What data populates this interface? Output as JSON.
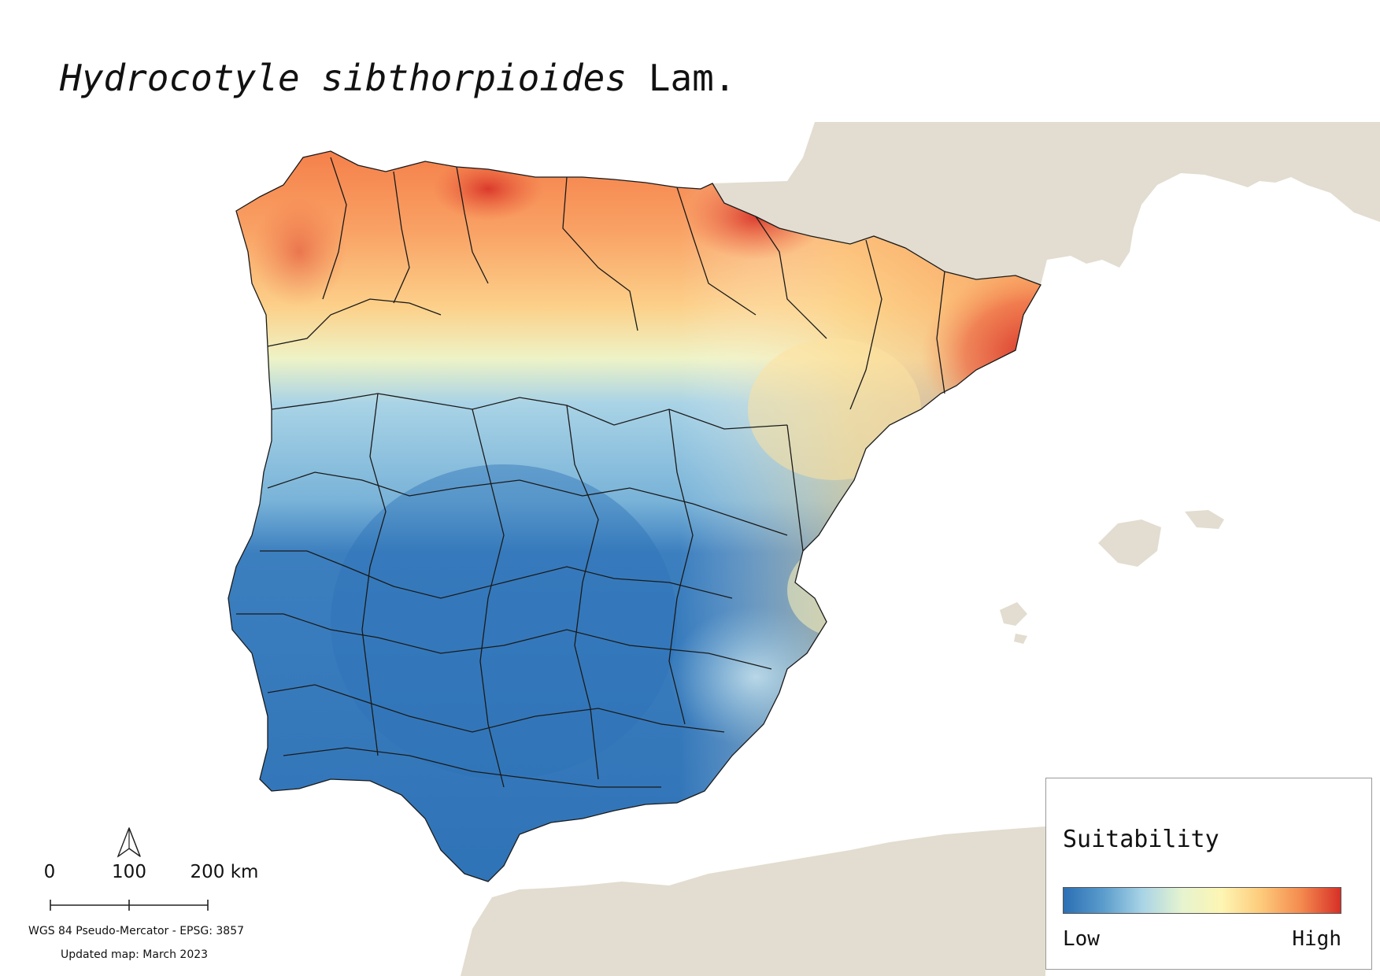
{
  "title": {
    "species": "Hydrocotyle sibthorpioides",
    "author": "Lam."
  },
  "legend": {
    "title": "Suitability",
    "low_label": "Low",
    "high_label": "High",
    "ramp_colors": [
      "#2c6fb4",
      "#5a9ccc",
      "#a9d4e6",
      "#e6f4cf",
      "#fdf5b3",
      "#fdca7a",
      "#f48a4f",
      "#d73027"
    ]
  },
  "scalebar": {
    "labels": [
      "0",
      "100",
      "200 km"
    ]
  },
  "crs_text": "WGS 84 Pseudo-Mercator  - EPSG: 3857",
  "updated_text": "Updated map: March 2023",
  "colors": {
    "land_background": "#e2ddd0",
    "sea": "#ffffff",
    "boundary": "#1a1a1a",
    "high_suitability": "#d73027",
    "low_suitability": "#2c6fb4"
  },
  "icons": {
    "north_arrow": "north-arrow-icon"
  },
  "suitability_gradient_north_to_south": {
    "north_coast": "high",
    "central_plateau": "medium-low",
    "south": "low",
    "catalonia_coast": "very-high"
  }
}
